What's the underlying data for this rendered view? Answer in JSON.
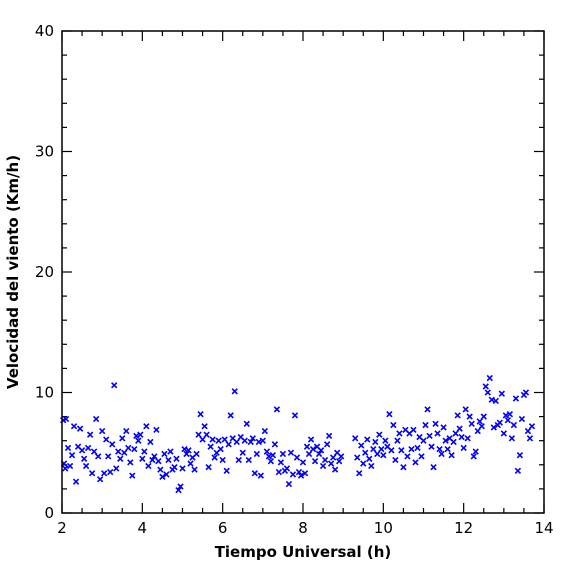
{
  "chart_data": {
    "type": "scatter",
    "title": "",
    "xlabel": "Tiempo Universal (h)",
    "ylabel": "Velocidad del viento (Km/h)",
    "xlim": [
      2,
      14
    ],
    "ylim": [
      0,
      40
    ],
    "xticks": [
      2,
      4,
      6,
      8,
      10,
      12,
      14
    ],
    "yticks": [
      0,
      10,
      20,
      30,
      40
    ],
    "marker": "x",
    "marker_color": "#0000ff",
    "grid": false,
    "series": [
      {
        "points": [
          [
            2.03,
            7.7
          ],
          [
            2.05,
            4.1
          ],
          [
            2.08,
            3.7
          ],
          [
            2.1,
            7.8
          ],
          [
            2.15,
            5.4
          ],
          [
            2.2,
            3.9
          ],
          [
            2.25,
            4.8
          ],
          [
            2.3,
            7.2
          ],
          [
            2.35,
            2.6
          ],
          [
            2.4,
            5.5
          ],
          [
            2.45,
            7.0
          ],
          [
            2.5,
            5.2
          ],
          [
            2.55,
            4.5
          ],
          [
            2.6,
            3.9
          ],
          [
            2.65,
            5.4
          ],
          [
            2.7,
            6.5
          ],
          [
            2.75,
            3.3
          ],
          [
            2.8,
            5.1
          ],
          [
            2.85,
            7.8
          ],
          [
            2.9,
            4.7
          ],
          [
            2.95,
            2.8
          ],
          [
            3.0,
            6.8
          ],
          [
            3.05,
            3.3
          ],
          [
            3.1,
            6.1
          ],
          [
            3.15,
            4.7
          ],
          [
            3.2,
            3.4
          ],
          [
            3.25,
            5.7
          ],
          [
            3.3,
            10.6
          ],
          [
            3.35,
            3.7
          ],
          [
            3.4,
            5.1
          ],
          [
            3.45,
            4.5
          ],
          [
            3.5,
            6.2
          ],
          [
            3.55,
            5.0
          ],
          [
            3.6,
            6.8
          ],
          [
            3.65,
            5.4
          ],
          [
            3.7,
            4.2
          ],
          [
            3.75,
            3.1
          ],
          [
            3.8,
            5.3
          ],
          [
            3.85,
            6.4
          ],
          [
            3.9,
            6.0
          ],
          [
            3.95,
            6.5
          ],
          [
            4.0,
            4.5
          ],
          [
            4.05,
            5.1
          ],
          [
            4.1,
            7.2
          ],
          [
            4.15,
            3.9
          ],
          [
            4.2,
            5.9
          ],
          [
            4.25,
            4.4
          ],
          [
            4.3,
            4.7
          ],
          [
            4.35,
            6.9
          ],
          [
            4.4,
            4.3
          ],
          [
            4.45,
            3.6
          ],
          [
            4.5,
            3.0
          ],
          [
            4.55,
            4.9
          ],
          [
            4.6,
            3.2
          ],
          [
            4.65,
            4.4
          ],
          [
            4.7,
            5.1
          ],
          [
            4.75,
            3.6
          ],
          [
            4.8,
            3.8
          ],
          [
            4.85,
            4.5
          ],
          [
            4.9,
            1.9
          ],
          [
            4.95,
            2.2
          ],
          [
            5.0,
            3.7
          ],
          [
            5.05,
            5.3
          ],
          [
            5.1,
            4.9
          ],
          [
            5.15,
            5.2
          ],
          [
            5.2,
            4.1
          ],
          [
            5.25,
            4.6
          ],
          [
            5.3,
            3.6
          ],
          [
            5.35,
            4.9
          ],
          [
            5.4,
            6.5
          ],
          [
            5.45,
            8.2
          ],
          [
            5.5,
            6.1
          ],
          [
            5.55,
            7.2
          ],
          [
            5.6,
            6.5
          ],
          [
            5.65,
            3.8
          ],
          [
            5.7,
            5.5
          ],
          [
            5.75,
            6.1
          ],
          [
            5.8,
            4.6
          ],
          [
            5.85,
            5.0
          ],
          [
            5.9,
            6.0
          ],
          [
            5.95,
            5.3
          ],
          [
            6.0,
            4.4
          ],
          [
            6.05,
            6.1
          ],
          [
            6.1,
            3.5
          ],
          [
            6.15,
            5.7
          ],
          [
            6.2,
            8.1
          ],
          [
            6.25,
            6.2
          ],
          [
            6.3,
            10.1
          ],
          [
            6.35,
            5.9
          ],
          [
            6.4,
            4.4
          ],
          [
            6.45,
            6.3
          ],
          [
            6.5,
            5.0
          ],
          [
            6.55,
            6.0
          ],
          [
            6.6,
            7.4
          ],
          [
            6.65,
            4.4
          ],
          [
            6.7,
            5.9
          ],
          [
            6.75,
            6.2
          ],
          [
            6.8,
            3.3
          ],
          [
            6.85,
            4.9
          ],
          [
            6.9,
            5.9
          ],
          [
            6.95,
            3.1
          ],
          [
            7.0,
            6.0
          ],
          [
            7.05,
            6.8
          ],
          [
            7.1,
            5.1
          ],
          [
            7.15,
            4.7
          ],
          [
            7.2,
            4.3
          ],
          [
            7.25,
            4.8
          ],
          [
            7.3,
            5.7
          ],
          [
            7.35,
            8.6
          ],
          [
            7.4,
            3.4
          ],
          [
            7.45,
            4.2
          ],
          [
            7.5,
            4.9
          ],
          [
            7.55,
            3.5
          ],
          [
            7.6,
            3.7
          ],
          [
            7.65,
            2.4
          ],
          [
            7.7,
            5.0
          ],
          [
            7.75,
            3.2
          ],
          [
            7.8,
            8.1
          ],
          [
            7.85,
            4.6
          ],
          [
            7.9,
            3.4
          ],
          [
            7.95,
            3.1
          ],
          [
            8.0,
            4.2
          ],
          [
            8.05,
            3.3
          ],
          [
            8.1,
            5.5
          ],
          [
            8.15,
            4.9
          ],
          [
            8.2,
            6.1
          ],
          [
            8.25,
            5.3
          ],
          [
            8.3,
            4.3
          ],
          [
            8.35,
            5.5
          ],
          [
            8.4,
            4.9
          ],
          [
            8.45,
            5.2
          ],
          [
            8.5,
            3.9
          ],
          [
            8.55,
            4.4
          ],
          [
            8.6,
            5.7
          ],
          [
            8.65,
            6.4
          ],
          [
            8.7,
            4.1
          ],
          [
            8.75,
            4.6
          ],
          [
            8.8,
            3.6
          ],
          [
            8.85,
            5.0
          ],
          [
            8.9,
            4.3
          ],
          [
            8.95,
            4.7
          ],
          [
            9.3,
            6.2
          ],
          [
            9.35,
            4.6
          ],
          [
            9.4,
            3.3
          ],
          [
            9.45,
            5.6
          ],
          [
            9.5,
            4.1
          ],
          [
            9.55,
            5.0
          ],
          [
            9.6,
            6.1
          ],
          [
            9.65,
            4.5
          ],
          [
            9.7,
            3.9
          ],
          [
            9.75,
            5.3
          ],
          [
            9.8,
            5.9
          ],
          [
            9.85,
            4.9
          ],
          [
            9.9,
            6.5
          ],
          [
            9.95,
            5.3
          ],
          [
            10.0,
            4.8
          ],
          [
            10.05,
            6.0
          ],
          [
            10.1,
            5.5
          ],
          [
            10.15,
            8.2
          ],
          [
            10.2,
            5.2
          ],
          [
            10.25,
            7.3
          ],
          [
            10.3,
            4.4
          ],
          [
            10.35,
            6.0
          ],
          [
            10.4,
            6.6
          ],
          [
            10.45,
            5.2
          ],
          [
            10.5,
            3.8
          ],
          [
            10.55,
            6.9
          ],
          [
            10.6,
            4.7
          ],
          [
            10.65,
            6.6
          ],
          [
            10.7,
            5.3
          ],
          [
            10.75,
            6.9
          ],
          [
            10.8,
            4.2
          ],
          [
            10.85,
            5.4
          ],
          [
            10.9,
            6.3
          ],
          [
            10.95,
            4.7
          ],
          [
            11.0,
            6.0
          ],
          [
            11.05,
            7.3
          ],
          [
            11.1,
            8.6
          ],
          [
            11.15,
            6.4
          ],
          [
            11.2,
            5.5
          ],
          [
            11.25,
            3.8
          ],
          [
            11.3,
            7.4
          ],
          [
            11.35,
            6.6
          ],
          [
            11.4,
            5.3
          ],
          [
            11.45,
            4.9
          ],
          [
            11.5,
            7.1
          ],
          [
            11.55,
            6.0
          ],
          [
            11.6,
            5.3
          ],
          [
            11.65,
            6.2
          ],
          [
            11.7,
            4.8
          ],
          [
            11.75,
            5.9
          ],
          [
            11.8,
            6.6
          ],
          [
            11.85,
            8.1
          ],
          [
            11.9,
            7.0
          ],
          [
            11.95,
            6.3
          ],
          [
            12.0,
            5.4
          ],
          [
            12.05,
            8.6
          ],
          [
            12.1,
            6.2
          ],
          [
            12.15,
            8.0
          ],
          [
            12.2,
            7.4
          ],
          [
            12.25,
            4.7
          ],
          [
            12.3,
            5.1
          ],
          [
            12.35,
            6.8
          ],
          [
            12.4,
            7.6
          ],
          [
            12.45,
            7.2
          ],
          [
            12.5,
            8.0
          ],
          [
            12.55,
            10.5
          ],
          [
            12.6,
            10.0
          ],
          [
            12.65,
            11.2
          ],
          [
            12.7,
            9.4
          ],
          [
            12.75,
            7.1
          ],
          [
            12.8,
            9.3
          ],
          [
            12.85,
            7.3
          ],
          [
            12.9,
            7.5
          ],
          [
            12.95,
            9.9
          ],
          [
            13.0,
            6.6
          ],
          [
            13.05,
            8.1
          ],
          [
            13.1,
            7.7
          ],
          [
            13.15,
            8.2
          ],
          [
            13.2,
            6.2
          ],
          [
            13.25,
            7.3
          ],
          [
            13.3,
            9.5
          ],
          [
            13.35,
            3.5
          ],
          [
            13.4,
            4.8
          ],
          [
            13.45,
            7.8
          ],
          [
            13.5,
            9.8
          ],
          [
            13.55,
            10.0
          ],
          [
            13.6,
            6.8
          ],
          [
            13.65,
            6.2
          ],
          [
            13.7,
            7.2
          ]
        ]
      }
    ]
  }
}
